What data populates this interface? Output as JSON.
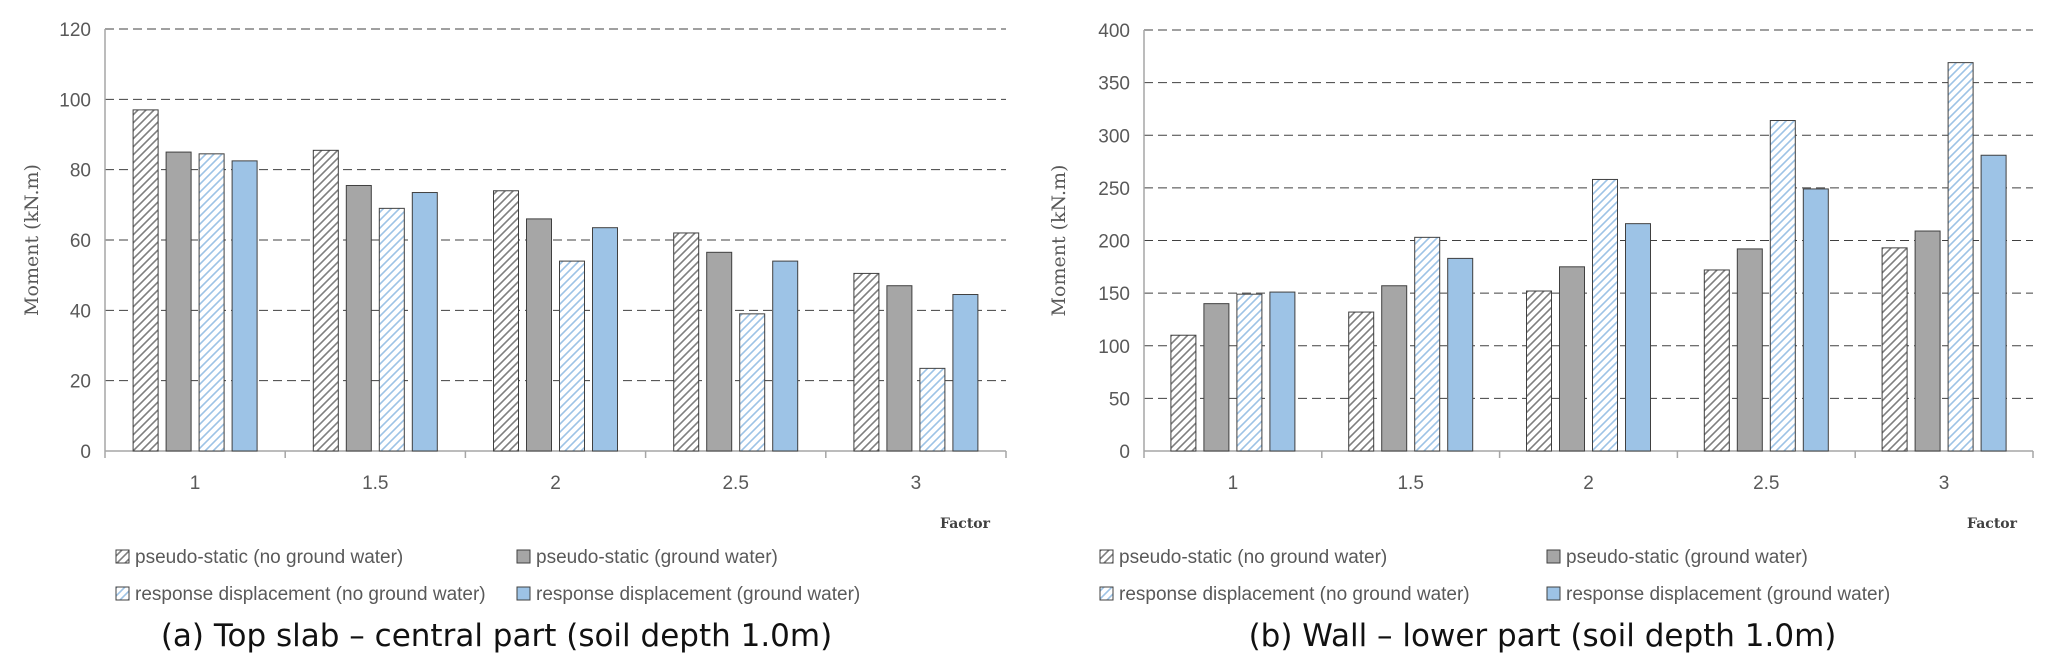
{
  "series_names": [
    "pseudo-static (no ground water)",
    "pseudo-static (ground water)",
    "response displacement (no ground water)",
    "response displacement (ground water)"
  ],
  "colors": {
    "hatch_stroke": "#7f7f7f",
    "solid_gray": "#a6a6a6",
    "hatch_blue": "#9dc3e6",
    "solid_blue": "#9dc3e6",
    "bar_border": "#404040",
    "grid": "#404040",
    "axis": "#a6a6a6"
  },
  "chart_data": [
    {
      "type": "bar",
      "ylabel": "Moment (kN.m)",
      "xlabel": "Factor",
      "categories": [
        "1",
        "1.5",
        "2",
        "2.5",
        "3"
      ],
      "ylim": [
        0,
        120
      ],
      "yticks": [
        0,
        20,
        40,
        60,
        80,
        100,
        120
      ],
      "caption": "(a) Top slab – central part (soil depth 1.0m)",
      "series": [
        {
          "name": "pseudo-static (no ground water)",
          "values": [
            97,
            85.5,
            74,
            62,
            50.5
          ]
        },
        {
          "name": "pseudo-static (ground water)",
          "values": [
            85,
            75.5,
            66,
            56.5,
            47
          ]
        },
        {
          "name": "response displacement (no ground water)",
          "values": [
            84.5,
            69,
            54,
            39,
            23.5
          ]
        },
        {
          "name": "response displacement (ground water)",
          "values": [
            82.5,
            73.5,
            63.5,
            54,
            44.5
          ]
        }
      ]
    },
    {
      "type": "bar",
      "ylabel": "Moment (kN.m)",
      "xlabel": "Factor",
      "categories": [
        "1",
        "1.5",
        "2",
        "2.5",
        "3"
      ],
      "ylim": [
        0,
        400
      ],
      "yticks": [
        0,
        50,
        100,
        150,
        200,
        250,
        300,
        350,
        400
      ],
      "caption": "(b) Wall – lower part (soil depth 1.0m)",
      "series": [
        {
          "name": "pseudo-static (no ground water)",
          "values": [
            110,
            132,
            152,
            172,
            193
          ]
        },
        {
          "name": "pseudo-static (ground water)",
          "values": [
            140,
            157,
            175,
            192,
            209
          ]
        },
        {
          "name": "response displacement (no ground water)",
          "values": [
            149,
            203,
            258,
            314,
            369
          ]
        },
        {
          "name": "response displacement (ground water)",
          "values": [
            151,
            183,
            216,
            249,
            281
          ]
        }
      ]
    }
  ]
}
